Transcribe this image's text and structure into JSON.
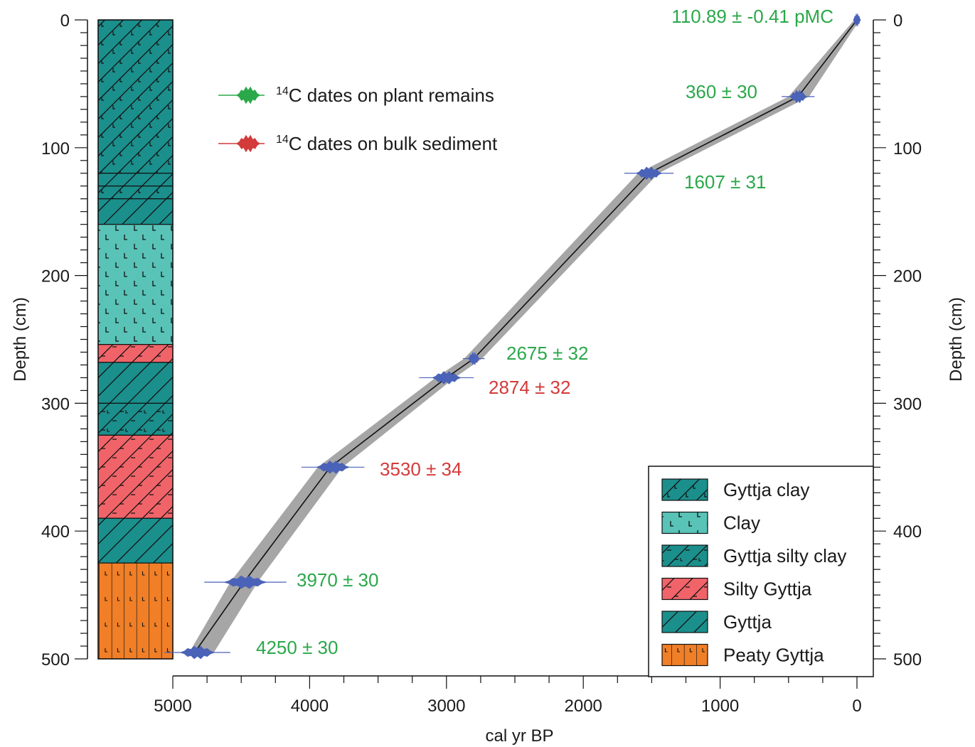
{
  "chart_data": {
    "type": "line",
    "xlabel": "cal yr BP",
    "ylabel_left": "Depth (cm)",
    "ylabel_right": "Depth (cm)",
    "xlim": [
      5000,
      0
    ],
    "ylim": [
      0,
      500
    ],
    "x_ticks": [
      5000,
      4000,
      3000,
      2000,
      1000,
      0
    ],
    "y_ticks": [
      0,
      100,
      200,
      300,
      400,
      500
    ],
    "grid": false,
    "colors": {
      "plant": "#2aa84a",
      "bulk": "#d33a3a",
      "calib": "#4a62b8",
      "envelope": "#a6a6a6",
      "median": "#111111",
      "gyttja": "#1b8f8c",
      "clay": "#59c3b7",
      "silty_gyttja": "#f06469",
      "peaty_gyttja": "#f07f27"
    },
    "age_model": {
      "median": [
        [
          0,
          0
        ],
        [
          430,
          60
        ],
        [
          1520,
          120
        ],
        [
          2800,
          265
        ],
        [
          3000,
          280
        ],
        [
          3850,
          350
        ],
        [
          4480,
          440
        ],
        [
          4840,
          495
        ]
      ],
      "envelope_min": [
        [
          -20,
          0
        ],
        [
          350,
          60
        ],
        [
          1450,
          120
        ],
        [
          2740,
          265
        ],
        [
          2940,
          280
        ],
        [
          3760,
          350
        ],
        [
          4380,
          440
        ],
        [
          4700,
          495
        ]
      ],
      "envelope_max": [
        [
          20,
          0
        ],
        [
          500,
          60
        ],
        [
          1600,
          120
        ],
        [
          2870,
          265
        ],
        [
          3080,
          280
        ],
        [
          3940,
          350
        ],
        [
          4580,
          440
        ],
        [
          4880,
          495
        ]
      ]
    },
    "dates": [
      {
        "label": "110.89 ± -0.41 pMC",
        "type": "plant",
        "depth": 0,
        "age": 0,
        "spread": 10
      },
      {
        "label": "360 ± 30",
        "type": "plant",
        "depth": 60,
        "age": 430,
        "spread": 120
      },
      {
        "label": "1607 ± 31",
        "type": "plant",
        "depth": 120,
        "age": 1520,
        "spread": 180
      },
      {
        "label": "2675 ± 32",
        "type": "plant",
        "depth": 265,
        "age": 2800,
        "spread": 80
      },
      {
        "label": "2874 ± 32",
        "type": "bulk",
        "depth": 280,
        "age": 3000,
        "spread": 200
      },
      {
        "label": "3530 ± 34",
        "type": "bulk",
        "depth": 350,
        "age": 3830,
        "spread": 230
      },
      {
        "label": "3970 ± 30",
        "type": "plant",
        "depth": 440,
        "age": 4470,
        "spread": 300
      },
      {
        "label": "4250 ± 30",
        "type": "plant",
        "depth": 495,
        "age": 4820,
        "spread": 240
      }
    ],
    "dates_legend": [
      {
        "sup": "14",
        "text": "C dates on plant remains",
        "type": "plant"
      },
      {
        "sup": "14",
        "text": "C dates on bulk sediment",
        "type": "bulk"
      }
    ],
    "lithology": [
      {
        "top": 0,
        "bottom": 120,
        "type": "gyttja_clay"
      },
      {
        "top": 120,
        "bottom": 130,
        "type": "gyttja"
      },
      {
        "top": 130,
        "bottom": 140,
        "type": "gyttja_clay"
      },
      {
        "top": 140,
        "bottom": 160,
        "type": "gyttja"
      },
      {
        "top": 160,
        "bottom": 254,
        "type": "clay"
      },
      {
        "top": 254,
        "bottom": 268,
        "type": "silty_gyttja"
      },
      {
        "top": 268,
        "bottom": 300,
        "type": "gyttja"
      },
      {
        "top": 300,
        "bottom": 325,
        "type": "gyttja_silty_clay"
      },
      {
        "top": 325,
        "bottom": 390,
        "type": "silty_gyttja"
      },
      {
        "top": 390,
        "bottom": 425,
        "type": "gyttja"
      },
      {
        "top": 425,
        "bottom": 500,
        "type": "peaty_gyttja"
      }
    ],
    "legend": [
      {
        "key": "gyttja_clay",
        "label": "Gyttja clay"
      },
      {
        "key": "clay",
        "label": "Clay"
      },
      {
        "key": "gyttja_silty_clay",
        "label": "Gyttja silty clay"
      },
      {
        "key": "silty_gyttja",
        "label": "Silty Gyttja"
      },
      {
        "key": "gyttja",
        "label": "Gyttja"
      },
      {
        "key": "peaty_gyttja",
        "label": "Peaty Gyttja"
      }
    ],
    "legend_position": "bottom-right"
  }
}
